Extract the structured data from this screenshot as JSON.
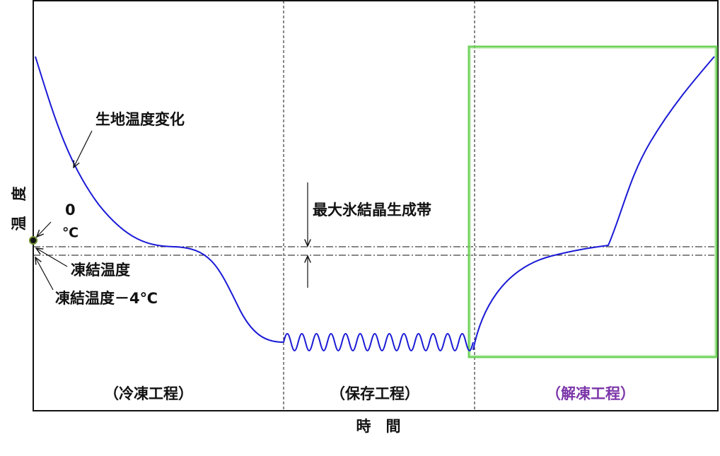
{
  "axis": {
    "y_label": "温　度",
    "x_label": "時　間"
  },
  "annotations": {
    "curve": "生地温度変化",
    "zero": "0",
    "celsius": "℃",
    "freezing": "凍結温度",
    "freezing_minus4": "凍結温度－4℃",
    "max_ice_zone": "最大氷結晶生成帯"
  },
  "phases": [
    "（冷凍工程）",
    "（保存工程）",
    "（解凍工程）"
  ]
}
